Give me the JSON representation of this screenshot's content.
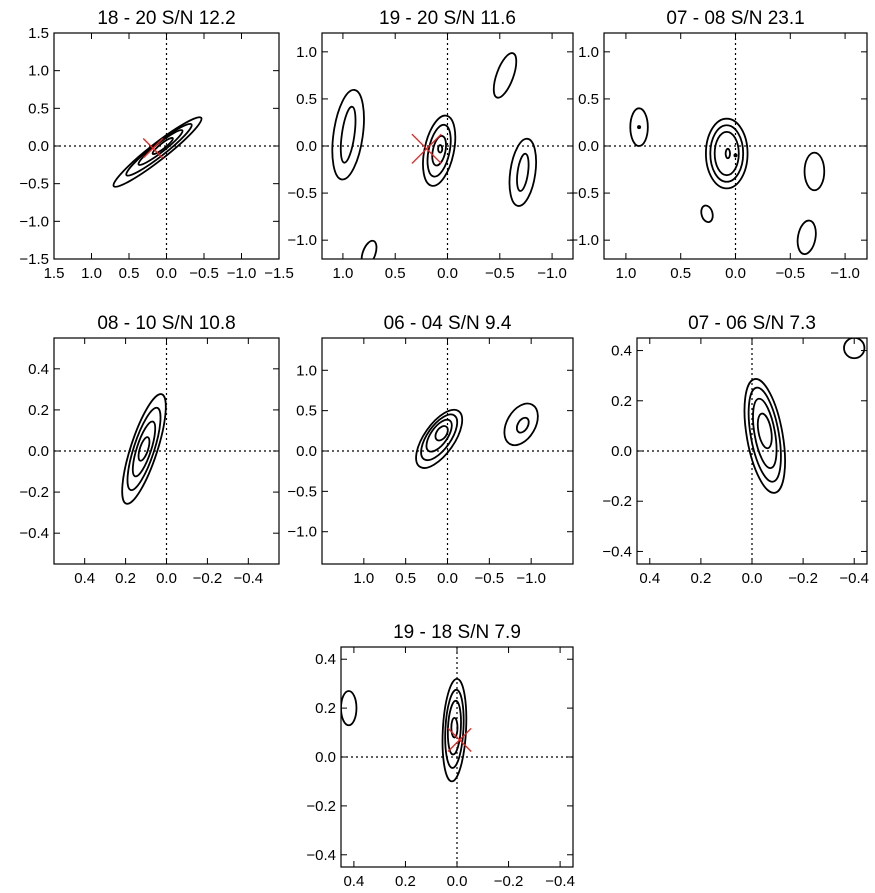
{
  "chart_data": [
    {
      "type": "contour",
      "title": "18 - 20  S/N 12.2",
      "xlim": [
        1.5,
        -1.5
      ],
      "ylim": [
        -1.5,
        1.5
      ],
      "xticks": [
        1.5,
        1.0,
        0.5,
        0.0,
        -0.5,
        -1.0,
        -1.5
      ],
      "yticks": [
        -1.5,
        -1.0,
        -0.5,
        0.0,
        0.5,
        1.0,
        1.5
      ],
      "xtick_labels": [
        "1.5",
        "1.0",
        "0.5",
        "0.0",
        "−0.5",
        "−1.0",
        "−1.5"
      ],
      "ytick_labels": [
        "−1.5",
        "−1.0",
        "−0.5",
        "0.0",
        "0.5",
        "1.0",
        "1.5"
      ],
      "contours": [
        {
          "cx": 0.12,
          "cy": -0.08,
          "rx": 0.74,
          "ry": 0.11,
          "angle": 38
        },
        {
          "cx": 0.1,
          "cy": -0.05,
          "rx": 0.55,
          "ry": 0.085,
          "angle": 38
        },
        {
          "cx": 0.08,
          "cy": -0.02,
          "rx": 0.37,
          "ry": 0.06,
          "angle": 38
        },
        {
          "cx": 0.05,
          "cy": 0.0,
          "rx": 0.17,
          "ry": 0.035,
          "angle": 38
        }
      ],
      "peaks": [],
      "markers": [
        {
          "x": 0.18,
          "y": -0.03,
          "size": 0.13
        }
      ]
    },
    {
      "type": "contour",
      "title": "19 - 20  S/N 11.6",
      "xlim": [
        1.2,
        -1.2
      ],
      "ylim": [
        -1.2,
        1.2
      ],
      "xticks": [
        1.0,
        0.5,
        0.0,
        -0.5,
        -1.0
      ],
      "yticks": [
        -1.0,
        -0.5,
        0.0,
        0.5,
        1.0
      ],
      "xtick_labels": [
        "1.0",
        "0.5",
        "0.0",
        "−0.5",
        "−1.0"
      ],
      "ytick_labels": [
        "−1.0",
        "−0.5",
        "0.0",
        "0.5",
        "1.0"
      ],
      "contours": [
        {
          "cx": 0.95,
          "cy": 0.12,
          "rx": 0.14,
          "ry": 0.48,
          "angle": -8
        },
        {
          "cx": 0.95,
          "cy": 0.12,
          "rx": 0.06,
          "ry": 0.3,
          "angle": -8
        },
        {
          "cx": 0.08,
          "cy": -0.05,
          "rx": 0.14,
          "ry": 0.38,
          "angle": -12
        },
        {
          "cx": 0.08,
          "cy": -0.05,
          "rx": 0.1,
          "ry": 0.28,
          "angle": -12
        },
        {
          "cx": 0.08,
          "cy": -0.05,
          "rx": 0.06,
          "ry": 0.16,
          "angle": -12
        },
        {
          "cx": 0.07,
          "cy": -0.03,
          "rx": 0.02,
          "ry": 0.04,
          "angle": 0
        },
        {
          "cx": -0.55,
          "cy": 0.75,
          "rx": 0.08,
          "ry": 0.25,
          "angle": -20
        },
        {
          "cx": -0.72,
          "cy": -0.28,
          "rx": 0.12,
          "ry": 0.36,
          "angle": -8
        },
        {
          "cx": -0.72,
          "cy": -0.28,
          "rx": 0.05,
          "ry": 0.2,
          "angle": -8
        },
        {
          "cx": 0.75,
          "cy": -1.14,
          "rx": 0.06,
          "ry": 0.14,
          "angle": -20
        }
      ],
      "peaks": [],
      "markers": [
        {
          "x": 0.2,
          "y": -0.03,
          "size": 0.14
        }
      ]
    },
    {
      "type": "contour",
      "title": "07 - 08  S/N 23.1",
      "xlim": [
        1.2,
        -1.2
      ],
      "ylim": [
        -1.2,
        1.2
      ],
      "xticks": [
        1.0,
        0.5,
        0.0,
        -0.5,
        -1.0
      ],
      "yticks": [
        -1.0,
        -0.5,
        0.0,
        0.5,
        1.0
      ],
      "xtick_labels": [
        "1.0",
        "0.5",
        "0.0",
        "−0.5",
        "−1.0"
      ],
      "ytick_labels": [
        "−1.0",
        "−0.5",
        "0.0",
        "0.5",
        "1.0"
      ],
      "contours": [
        {
          "cx": 0.88,
          "cy": 0.2,
          "rx": 0.08,
          "ry": 0.2,
          "angle": 0
        },
        {
          "cx": 0.08,
          "cy": -0.08,
          "rx": 0.19,
          "ry": 0.37,
          "angle": 0
        },
        {
          "cx": 0.08,
          "cy": -0.08,
          "rx": 0.15,
          "ry": 0.3,
          "angle": 0
        },
        {
          "cx": 0.08,
          "cy": -0.08,
          "rx": 0.11,
          "ry": 0.23,
          "angle": 0
        },
        {
          "cx": 0.07,
          "cy": -0.08,
          "rx": 0.02,
          "ry": 0.05,
          "angle": 0
        },
        {
          "cx": -0.72,
          "cy": -0.27,
          "rx": 0.09,
          "ry": 0.2,
          "angle": 0
        },
        {
          "cx": 0.26,
          "cy": -0.72,
          "rx": 0.05,
          "ry": 0.09,
          "angle": 15
        },
        {
          "cx": -0.65,
          "cy": -0.97,
          "rx": 0.08,
          "ry": 0.18,
          "angle": -10
        }
      ],
      "peaks": [
        {
          "x": 0.88,
          "y": 0.2
        },
        {
          "x": 0.0,
          "y": -0.1
        }
      ],
      "markers": []
    },
    {
      "type": "contour",
      "title": "08 - 10  S/N 10.8",
      "xlim": [
        0.55,
        -0.55
      ],
      "ylim": [
        -0.55,
        0.55
      ],
      "xticks": [
        0.4,
        0.2,
        0.0,
        -0.2,
        -0.4
      ],
      "yticks": [
        -0.4,
        -0.2,
        0.0,
        0.2,
        0.4
      ],
      "xtick_labels": [
        "0.4",
        "0.2",
        "0.0",
        "−0.2",
        "−0.4"
      ],
      "ytick_labels": [
        "−0.4",
        "−0.2",
        "0.0",
        "0.2",
        "0.4"
      ],
      "contours": [
        {
          "cx": 0.11,
          "cy": 0.01,
          "rx": 0.065,
          "ry": 0.28,
          "angle": -18
        },
        {
          "cx": 0.11,
          "cy": 0.01,
          "rx": 0.05,
          "ry": 0.21,
          "angle": -18
        },
        {
          "cx": 0.11,
          "cy": 0.01,
          "rx": 0.035,
          "ry": 0.14,
          "angle": -18
        },
        {
          "cx": 0.11,
          "cy": 0.01,
          "rx": 0.02,
          "ry": 0.06,
          "angle": -18
        }
      ],
      "peaks": [],
      "markers": []
    },
    {
      "type": "contour",
      "title": "06 - 04  S/N 9.4",
      "xlim": [
        1.5,
        -1.5
      ],
      "ylim": [
        -1.4,
        1.4
      ],
      "xticks": [
        1.0,
        0.5,
        0.0,
        -0.5,
        -1.0
      ],
      "yticks": [
        -1.0,
        -0.5,
        0.0,
        0.5,
        1.0
      ],
      "xtick_labels": [
        "1.0",
        "0.5",
        "0.0",
        "−0.5",
        "−1.0"
      ],
      "ytick_labels": [
        "−1.0",
        "−0.5",
        "0.0",
        "0.5",
        "1.0"
      ],
      "contours": [
        {
          "cx": 0.1,
          "cy": 0.15,
          "rx": 0.18,
          "ry": 0.42,
          "angle": -35
        },
        {
          "cx": 0.1,
          "cy": 0.17,
          "rx": 0.14,
          "ry": 0.33,
          "angle": -35
        },
        {
          "cx": 0.1,
          "cy": 0.19,
          "rx": 0.1,
          "ry": 0.23,
          "angle": -35
        },
        {
          "cx": 0.07,
          "cy": 0.22,
          "rx": 0.06,
          "ry": 0.1,
          "angle": -35
        },
        {
          "cx": -0.88,
          "cy": 0.33,
          "rx": 0.17,
          "ry": 0.28,
          "angle": -30
        },
        {
          "cx": -0.9,
          "cy": 0.32,
          "rx": 0.06,
          "ry": 0.1,
          "angle": -30
        }
      ],
      "peaks": [],
      "markers": []
    },
    {
      "type": "contour",
      "title": "07 - 06  S/N 7.3",
      "xlim": [
        0.45,
        -0.45
      ],
      "ylim": [
        -0.45,
        0.45
      ],
      "xticks": [
        0.4,
        0.2,
        0.0,
        -0.2,
        -0.4
      ],
      "yticks": [
        -0.4,
        -0.2,
        0.0,
        0.2,
        0.4
      ],
      "xtick_labels": [
        "0.4",
        "0.2",
        "0.0",
        "−0.2",
        "−0.4"
      ],
      "ytick_labels": [
        "−0.4",
        "−0.2",
        "0.0",
        "0.2",
        "0.4"
      ],
      "contours": [
        {
          "cx": -0.05,
          "cy": 0.06,
          "rx": 0.07,
          "ry": 0.23,
          "angle": 10
        },
        {
          "cx": -0.05,
          "cy": 0.065,
          "rx": 0.055,
          "ry": 0.19,
          "angle": 10
        },
        {
          "cx": -0.05,
          "cy": 0.07,
          "rx": 0.04,
          "ry": 0.14,
          "angle": 10
        },
        {
          "cx": -0.05,
          "cy": 0.08,
          "rx": 0.025,
          "ry": 0.07,
          "angle": 10
        }
      ],
      "peaks": [],
      "markers": [],
      "partial_contours": [
        {
          "cx": -0.4,
          "cy": 0.41,
          "r": 0.04
        }
      ]
    },
    {
      "type": "contour",
      "title": "19 - 18  S/N 7.9",
      "xlim": [
        0.45,
        -0.45
      ],
      "ylim": [
        -0.45,
        0.45
      ],
      "xticks": [
        0.4,
        0.2,
        0.0,
        -0.2,
        -0.4
      ],
      "yticks": [
        -0.4,
        -0.2,
        0.0,
        0.2,
        0.4
      ],
      "xtick_labels": [
        "0.4",
        "0.2",
        "0.0",
        "−0.2",
        "−0.4"
      ],
      "ytick_labels": [
        "−0.4",
        "−0.2",
        "0.0",
        "0.2",
        "0.4"
      ],
      "contours": [
        {
          "cx": 0.42,
          "cy": 0.2,
          "rx": 0.03,
          "ry": 0.07,
          "angle": 0
        },
        {
          "cx": 0.01,
          "cy": 0.11,
          "rx": 0.045,
          "ry": 0.21,
          "angle": -3
        },
        {
          "cx": 0.01,
          "cy": 0.115,
          "rx": 0.035,
          "ry": 0.16,
          "angle": -3
        },
        {
          "cx": 0.01,
          "cy": 0.12,
          "rx": 0.025,
          "ry": 0.11,
          "angle": -3
        },
        {
          "cx": 0.01,
          "cy": 0.12,
          "rx": 0.012,
          "ry": 0.04,
          "angle": 0
        }
      ],
      "peaks": [],
      "markers": [
        {
          "x": -0.01,
          "y": 0.07,
          "size": 0.045
        }
      ]
    }
  ]
}
